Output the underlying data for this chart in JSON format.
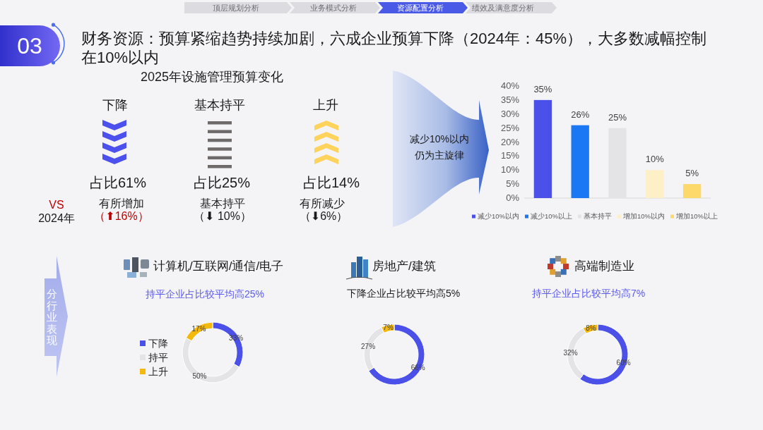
{
  "chart_data": [
    {
      "type": "other",
      "title": "财务资源：预算紧缩趋势持续加剧，六成企业预算下降（2024年：45%），大多数减幅控制在10%以内",
      "subtitle": "2025年设施管理预算变化",
      "categories": [
        "下降",
        "基本持平",
        "上升"
      ],
      "annotations": [
        "03",
        "顶层规划分析",
        "业务模式分析",
        "资源配置分析",
        "绩效及满意度分析",
        "占比61%",
        "占比25%",
        "占比14%",
        "VS",
        "2024年",
        "有所增加",
        "（⬆16%）",
        "基本持平",
        "（⬇ 10%）",
        "有所减少",
        "（⬇6%）"
      ]
    },
    {
      "type": "bar",
      "annotations": [
        "减少10%以内仍为主旋律"
      ],
      "categories": [
        null,
        null,
        null,
        null,
        null
      ],
      "series": [
        {
          "name": "减少10%以内",
          "color": "#4a50e8",
          "values": [
            35,
            null,
            null,
            null,
            null
          ],
          "value_labels": [
            "35%",
            null,
            null,
            null,
            null
          ]
        },
        {
          "name": "减少10%以上",
          "color": "#1a78f5",
          "values": [
            null,
            26,
            null,
            null,
            null
          ],
          "value_labels": [
            null,
            "26%",
            null,
            null,
            null
          ]
        },
        {
          "name": "基本持平",
          "color": "#e4e4e6",
          "values": [
            null,
            null,
            25,
            null,
            null
          ],
          "value_labels": [
            null,
            null,
            "25%",
            null,
            null
          ]
        },
        {
          "name": "增加10%以内",
          "color": "#fdefc6",
          "values": [
            null,
            null,
            null,
            10,
            null
          ],
          "value_labels": [
            null,
            null,
            null,
            "10%",
            null
          ]
        },
        {
          "name": "增加10%以上",
          "color": "#fdd86a",
          "values": [
            null,
            null,
            null,
            null,
            5
          ],
          "value_labels": [
            null,
            null,
            null,
            null,
            "5%"
          ]
        }
      ],
      "ylim": [
        0,
        40
      ],
      "yticks": [
        {
          "value": 0,
          "label": "0%"
        },
        {
          "value": 5,
          "label": "5%"
        },
        {
          "value": 10,
          "label": "10%"
        },
        {
          "value": 15,
          "label": "15%"
        },
        {
          "value": 20,
          "label": "20%"
        },
        {
          "value": 25,
          "label": "25%"
        },
        {
          "value": 30,
          "label": "30%"
        },
        {
          "value": 35,
          "label": "35%"
        },
        {
          "value": 40,
          "label": "40%"
        }
      ],
      "legend": "bottom"
    },
    {
      "type": "donut",
      "title": "计算机/互联网/通信/电子",
      "subtitle": "持平企业占比较平均高25%",
      "annotations": [
        "分行业表现"
      ],
      "categories": [
        "下降",
        "持平",
        "上升"
      ],
      "values": [
        33,
        50,
        17
      ],
      "colors": [
        "#4a50e8",
        "#e4e4e6",
        "#f5b90c"
      ],
      "value_labels": [
        "33%",
        "50%",
        "17%"
      ],
      "legend": "left"
    },
    {
      "type": "donut",
      "title": "房地产/建筑",
      "subtitle": "下降企业占比较平均高5%",
      "categories": [
        null,
        null,
        null
      ],
      "values": [
        66,
        27,
        7
      ],
      "colors": [
        "#4a50e8",
        "#e4e4e6",
        "#f5b90c"
      ],
      "value_labels": [
        "66%",
        "27%",
        "7%"
      ]
    },
    {
      "type": "donut",
      "title": "高端制造业",
      "subtitle": "持平企业占比较平均高7%",
      "categories": [
        null,
        null,
        null
      ],
      "values": [
        60,
        32,
        8
      ],
      "colors": [
        "#4a50e8",
        "#e4e4e6",
        "#f5b90c"
      ],
      "value_labels": [
        "60%",
        "32%",
        "8%"
      ]
    }
  ]
}
